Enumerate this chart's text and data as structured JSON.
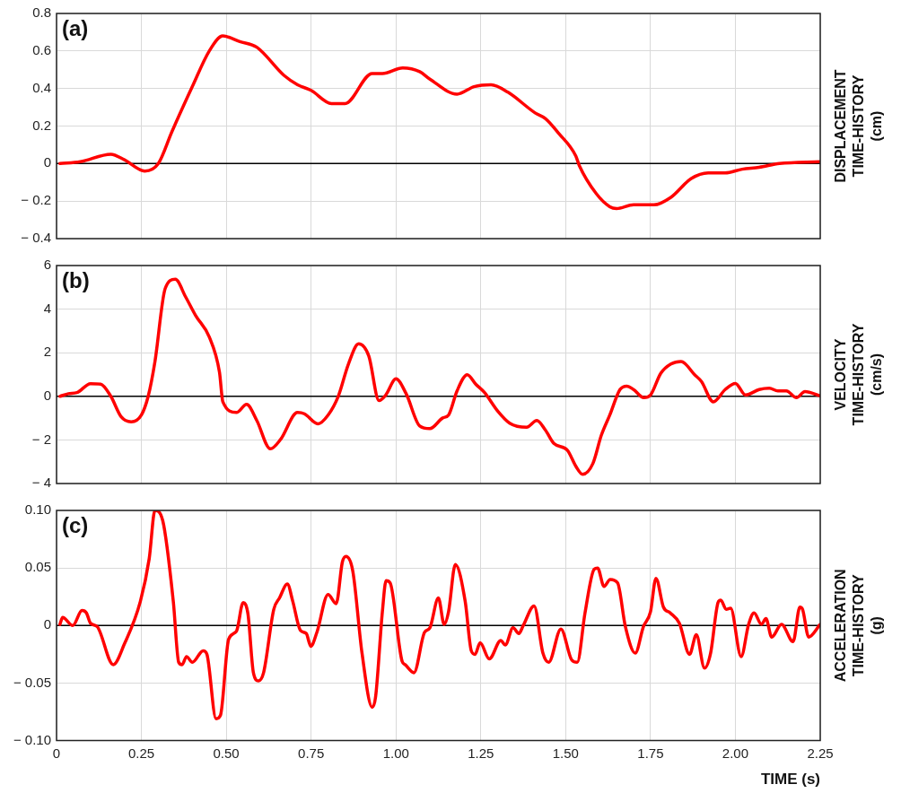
{
  "chart_data": [
    {
      "type": "line",
      "annotations": [
        "(a)"
      ],
      "ylabel": "DISPLACEMENT TIME-HISTORY (cm)",
      "xlim": [
        0,
        2.25
      ],
      "xticks": [
        0,
        0.25,
        0.5,
        0.75,
        1,
        1.25,
        1.5,
        1.75,
        2,
        2.25
      ],
      "ylim": [
        -0.4,
        0.8
      ],
      "yticks": [
        {
          "value": -0.4,
          "label": "− 0.4"
        },
        {
          "value": -0.2,
          "label": "− 0.2"
        },
        0,
        0.2,
        0.4,
        0.6,
        0.8
      ],
      "grid": true,
      "tick_labels": "y",
      "marker": "none",
      "line_style": "solid",
      "ref_lines": [
        {
          "axis": "y",
          "value": 0,
          "color": "#000000"
        }
      ],
      "series": [
        {
          "color": "#ff0000",
          "x": [
            0.01,
            0.07,
            0.16,
            0.2,
            0.26,
            0.3,
            0.34,
            0.4,
            0.45,
            0.49,
            0.54,
            0.59,
            0.67,
            0.71,
            0.75,
            0.81,
            0.85,
            0.93,
            0.96,
            1.02,
            1.07,
            1.1,
            1.18,
            1.23,
            1.28,
            1.33,
            1.41,
            1.44,
            1.48,
            1.53,
            1.54,
            1.59,
            1.63,
            1.65,
            1.7,
            1.76,
            1.81,
            1.87,
            1.92,
            1.97,
            2.02,
            2.07,
            2.13,
            2.25
          ],
          "values": [
            0,
            0.01,
            0.05,
            0.02,
            -0.04,
            0,
            0.17,
            0.41,
            0.6,
            0.68,
            0.65,
            0.62,
            0.47,
            0.42,
            0.39,
            0.32,
            0.32,
            0.48,
            0.48,
            0.51,
            0.49,
            0.45,
            0.37,
            0.41,
            0.42,
            0.38,
            0.27,
            0.24,
            0.16,
            0.04,
            -0.01,
            -0.16,
            -0.23,
            -0.24,
            -0.22,
            -0.22,
            -0.18,
            -0.08,
            -0.05,
            -0.05,
            -0.03,
            -0.02,
            0,
            0.01
          ]
        }
      ]
    },
    {
      "type": "line",
      "annotations": [
        "(b)"
      ],
      "ylabel": "VELOCITY TIME-HISTORY (cm/s)",
      "xlim": [
        0,
        2.25
      ],
      "xticks": [
        0,
        0.25,
        0.5,
        0.75,
        1,
        1.25,
        1.5,
        1.75,
        2,
        2.25
      ],
      "ylim": [
        -4,
        6
      ],
      "yticks": [
        {
          "value": -4,
          "label": "− 4"
        },
        {
          "value": -2,
          "label": "− 2"
        },
        0,
        2,
        4,
        6
      ],
      "grid": true,
      "tick_labels": "y",
      "marker": "none",
      "line_style": "solid",
      "ref_lines": [
        {
          "axis": "y",
          "value": 0,
          "color": "#000000"
        }
      ],
      "series": [
        {
          "color": "#ff0000",
          "x": [
            0.01,
            0.035,
            0.06,
            0.1,
            0.13,
            0.16,
            0.19,
            0.22,
            0.25,
            0.27,
            0.29,
            0.32,
            0.35,
            0.38,
            0.41,
            0.45,
            0.48,
            0.49,
            0.53,
            0.56,
            0.59,
            0.63,
            0.66,
            0.71,
            0.73,
            0.77,
            0.8,
            0.83,
            0.86,
            0.89,
            0.92,
            0.95,
            0.97,
            1.0,
            1.03,
            1.07,
            1.1,
            1.138,
            1.155,
            1.18,
            1.21,
            1.235,
            1.26,
            1.3,
            1.335,
            1.385,
            1.415,
            1.44,
            1.465,
            1.505,
            1.53,
            1.55,
            1.58,
            1.605,
            1.63,
            1.66,
            1.68,
            1.7,
            1.73,
            1.75,
            1.78,
            1.81,
            1.84,
            1.88,
            1.9,
            1.935,
            1.97,
            2.0,
            2.03,
            2.07,
            2.1,
            2.125,
            2.15,
            2.18,
            2.205,
            2.25
          ],
          "values": [
            0,
            0.12,
            0.17,
            0.58,
            0.56,
            0,
            -0.93,
            -1.17,
            -0.86,
            0,
            1.6,
            4.94,
            5.37,
            4.57,
            3.7,
            2.72,
            1.11,
            -0.25,
            -0.74,
            -0.37,
            -1.11,
            -2.41,
            -1.98,
            -0.74,
            -0.8,
            -1.26,
            -0.86,
            0,
            1.48,
            2.41,
            1.85,
            -0.19,
            0.06,
            0.8,
            0.12,
            -1.36,
            -1.48,
            -0.99,
            -0.86,
            0.25,
            0.99,
            0.56,
            0.19,
            -0.68,
            -1.23,
            -1.42,
            -1.11,
            -1.54,
            -2.16,
            -2.47,
            -3.21,
            -3.58,
            -3.09,
            -1.79,
            -0.86,
            0.31,
            0.47,
            0.31,
            -0.06,
            0.06,
            1.05,
            1.48,
            1.6,
            0.99,
            0.68,
            -0.25,
            0.31,
            0.59,
            0.06,
            0.31,
            0.37,
            0.25,
            0.25,
            -0.06,
            0.22,
            0.02
          ]
        }
      ]
    },
    {
      "type": "line",
      "annotations": [
        "(c)"
      ],
      "ylabel": "ACCELERATION TIME-HISTORY (g)",
      "xlabel": "TIME (s)",
      "xlim": [
        0,
        2.25
      ],
      "xticks": [
        0,
        0.25,
        {
          "value": 0.5,
          "label": "0.50"
        },
        0.75,
        {
          "value": 1,
          "label": "1.00"
        },
        1.25,
        {
          "value": 1.5,
          "label": "1.50"
        },
        1.75,
        {
          "value": 2,
          "label": "2.00"
        },
        2.25
      ],
      "ylim": [
        -0.1,
        0.1
      ],
      "yticks": [
        {
          "value": -0.1,
          "label": "− 0.10"
        },
        {
          "value": -0.05,
          "label": "− 0.05"
        },
        0,
        0.05,
        {
          "value": 0.1,
          "label": "0.10"
        }
      ],
      "grid": true,
      "marker": "none",
      "line_style": "solid",
      "ref_lines": [
        {
          "axis": "y",
          "value": 0,
          "color": "#000000"
        }
      ],
      "series": [
        {
          "color": "#ff0000",
          "x": [
            0.01,
            0.018,
            0.048,
            0.075,
            0.088,
            0.1,
            0.12,
            0.167,
            0.2,
            0.247,
            0.273,
            0.29,
            0.313,
            0.344,
            0.36,
            0.37,
            0.383,
            0.4,
            0.432,
            0.443,
            0.47,
            0.483,
            0.507,
            0.53,
            0.55,
            0.564,
            0.58,
            0.595,
            0.61,
            0.64,
            0.657,
            0.68,
            0.696,
            0.718,
            0.736,
            0.749,
            0.767,
            0.8,
            0.824,
            0.842,
            0.853,
            0.873,
            0.9,
            0.93,
            0.94,
            0.96,
            0.971,
            0.983,
            1.018,
            1.027,
            1.053,
            1.084,
            1.1,
            1.125,
            1.142,
            1.155,
            1.175,
            1.204,
            1.222,
            1.233,
            1.248,
            1.275,
            1.309,
            1.322,
            1.345,
            1.362,
            1.375,
            1.407,
            1.433,
            1.45,
            1.486,
            1.518,
            1.534,
            1.557,
            1.584,
            1.594,
            1.613,
            1.631,
            1.653,
            1.676,
            1.705,
            1.729,
            1.75,
            1.766,
            1.788,
            1.808,
            1.835,
            1.865,
            1.885,
            1.909,
            1.927,
            1.949,
            1.957,
            1.973,
            1.986,
            2.017,
            2.039,
            2.055,
            2.077,
            2.09,
            2.107,
            2.136,
            2.17,
            2.19,
            2.198,
            2.216,
            2.25
          ],
          "values": [
            0.001,
            0.007,
            0,
            0.013,
            0.011,
            0.002,
            -0.001,
            -0.034,
            -0.016,
            0.021,
            0.058,
            0.1,
            0.091,
            0.021,
            -0.032,
            -0.034,
            -0.027,
            -0.032,
            -0.022,
            -0.025,
            -0.081,
            -0.078,
            -0.012,
            -0.005,
            0.02,
            0.01,
            -0.041,
            -0.048,
            -0.041,
            0.014,
            0.024,
            0.036,
            0.021,
            -0.004,
            -0.007,
            -0.018,
            -0.006,
            0.027,
            0.019,
            0.055,
            0.06,
            0.047,
            -0.024,
            -0.071,
            -0.062,
            0.012,
            0.039,
            0.037,
            -0.031,
            -0.034,
            -0.041,
            -0.006,
            -0.002,
            0.024,
            0.001,
            0.012,
            0.053,
            0.021,
            -0.022,
            -0.025,
            -0.015,
            -0.029,
            -0.013,
            -0.017,
            -0.002,
            -0.007,
            0,
            0.017,
            -0.024,
            -0.032,
            -0.003,
            -0.03,
            -0.032,
            0.011,
            0.049,
            0.05,
            0.034,
            0.04,
            0.037,
            -0.001,
            -0.024,
            -0.001,
            0.012,
            0.041,
            0.016,
            0.011,
            0.002,
            -0.025,
            -0.008,
            -0.037,
            -0.024,
            0.02,
            0.022,
            0.014,
            0.015,
            -0.027,
            0.001,
            0.011,
            0.001,
            0.006,
            -0.01,
            0.001,
            -0.014,
            0.016,
            0.014,
            -0.01,
            0.001
          ]
        }
      ]
    }
  ]
}
